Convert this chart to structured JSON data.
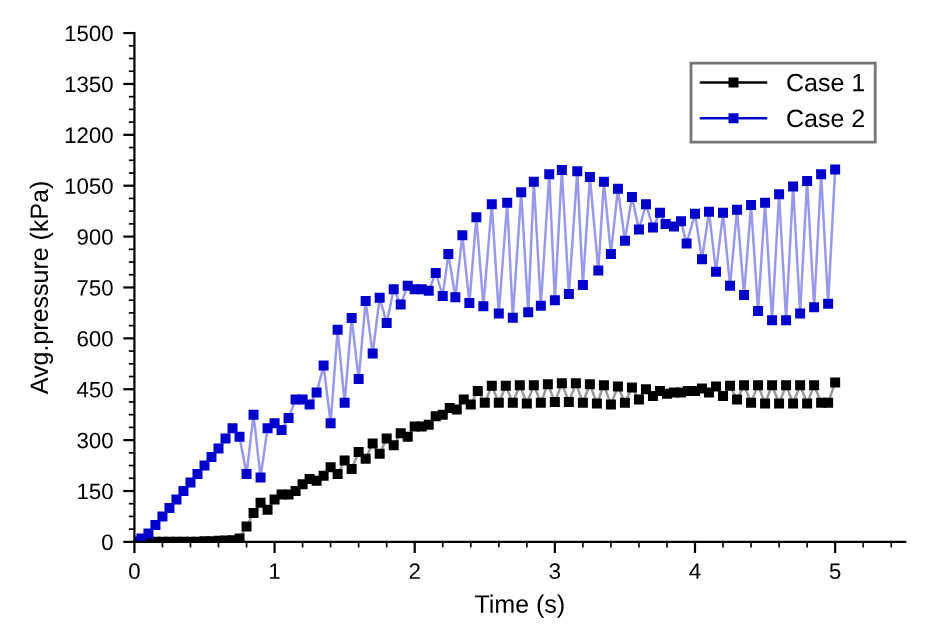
{
  "chart_data": {
    "type": "line",
    "xlabel": "Time (s)",
    "ylabel": "Avg.pressure (kPa)",
    "xlim": [
      0,
      5.5
    ],
    "xticks": [
      0,
      1,
      2,
      3,
      4,
      5
    ],
    "ylim": [
      0,
      1500
    ],
    "yticks": [
      0,
      150,
      300,
      450,
      600,
      750,
      900,
      1050,
      1200,
      1350,
      1500
    ],
    "grid": false,
    "legend": "top right",
    "marker": "square",
    "line_style": "solid",
    "series": [
      {
        "name": "Case 1",
        "color": "#000000",
        "x": [
          0,
          0.05,
          0.1,
          0.15,
          0.2,
          0.25,
          0.3,
          0.35,
          0.4,
          0.45,
          0.5,
          0.55,
          0.6,
          0.65,
          0.7,
          0.75,
          0.8,
          0.85,
          0.9,
          0.95,
          1.0,
          1.05,
          1.1,
          1.15,
          1.2,
          1.25,
          1.3,
          1.35,
          1.4,
          1.45,
          1.5,
          1.55,
          1.6,
          1.65,
          1.7,
          1.75,
          1.8,
          1.85,
          1.9,
          1.95,
          2.0,
          2.05,
          2.1,
          2.15,
          2.2,
          2.25,
          2.3,
          2.35,
          2.4,
          2.45,
          2.5,
          2.55,
          2.6,
          2.65,
          2.7,
          2.75,
          2.8,
          2.85,
          2.9,
          2.95,
          3.0,
          3.05,
          3.1,
          3.15,
          3.2,
          3.25,
          3.3,
          3.35,
          3.4,
          3.45,
          3.5,
          3.55,
          3.6,
          3.65,
          3.7,
          3.75,
          3.8,
          3.85,
          3.9,
          3.95,
          4.0,
          4.05,
          4.1,
          4.15,
          4.2,
          4.25,
          4.3,
          4.35,
          4.4,
          4.45,
          4.5,
          4.55,
          4.6,
          4.65,
          4.7,
          4.75,
          4.8,
          4.85,
          4.9,
          4.95,
          5.0
        ],
        "values": [
          0,
          0,
          0,
          0,
          0,
          0,
          0,
          0,
          0,
          0,
          2,
          2,
          3,
          4,
          5,
          10,
          45,
          85,
          115,
          95,
          125,
          140,
          140,
          150,
          170,
          185,
          180,
          195,
          220,
          200,
          240,
          215,
          265,
          245,
          290,
          260,
          305,
          285,
          320,
          310,
          340,
          340,
          345,
          370,
          375,
          395,
          390,
          420,
          405,
          445,
          410,
          460,
          410,
          460,
          410,
          462,
          408,
          462,
          410,
          465,
          412,
          468,
          412,
          468,
          410,
          465,
          408,
          462,
          405,
          458,
          410,
          455,
          420,
          450,
          430,
          445,
          437,
          440,
          440,
          445,
          445,
          452,
          440,
          458,
          430,
          460,
          420,
          462,
          410,
          462,
          408,
          462,
          408,
          462,
          408,
          462,
          408,
          462,
          410,
          410,
          470
        ]
      },
      {
        "name": "Case 2",
        "color": "#0000cc",
        "x": [
          0,
          0.05,
          0.1,
          0.15,
          0.2,
          0.25,
          0.3,
          0.35,
          0.4,
          0.45,
          0.5,
          0.55,
          0.6,
          0.65,
          0.7,
          0.75,
          0.8,
          0.85,
          0.9,
          0.95,
          1.0,
          1.05,
          1.1,
          1.15,
          1.2,
          1.25,
          1.3,
          1.35,
          1.4,
          1.45,
          1.5,
          1.55,
          1.6,
          1.65,
          1.7,
          1.75,
          1.8,
          1.85,
          1.9,
          1.95,
          2.0,
          2.05,
          2.1,
          2.15,
          2.2,
          2.24,
          2.29,
          2.34,
          2.39,
          2.44,
          2.49,
          2.55,
          2.6,
          2.66,
          2.7,
          2.76,
          2.81,
          2.85,
          2.9,
          2.96,
          3.0,
          3.05,
          3.1,
          3.16,
          3.2,
          3.25,
          3.31,
          3.35,
          3.4,
          3.45,
          3.5,
          3.55,
          3.6,
          3.65,
          3.7,
          3.75,
          3.79,
          3.85,
          3.9,
          3.94,
          4.0,
          4.05,
          4.1,
          4.15,
          4.2,
          4.25,
          4.3,
          4.35,
          4.4,
          4.45,
          4.5,
          4.55,
          4.6,
          4.65,
          4.7,
          4.75,
          4.8,
          4.85,
          4.9,
          4.95,
          5.0
        ],
        "values": [
          0,
          10,
          25,
          50,
          75,
          100,
          125,
          150,
          175,
          200,
          225,
          250,
          275,
          305,
          335,
          310,
          200,
          375,
          190,
          335,
          350,
          330,
          365,
          420,
          420,
          405,
          440,
          520,
          350,
          625,
          410,
          660,
          480,
          710,
          555,
          720,
          645,
          745,
          700,
          755,
          745,
          745,
          740,
          793,
          725,
          849,
          721,
          904,
          704,
          957,
          695,
          995,
          673,
          1000,
          661,
          1031,
          677,
          1062,
          696,
          1084,
          712,
          1096,
          731,
          1093,
          757,
          1076,
          800,
          1062,
          849,
          1041,
          888,
          1017,
          921,
          995,
          927,
          970,
          937,
          930,
          945,
          880,
          967,
          833,
          973,
          796,
          970,
          755,
          979,
          728,
          993,
          681,
          1000,
          653,
          1025,
          653,
          1048,
          673,
          1064,
          692,
          1084,
          702,
          1098
        ]
      }
    ]
  }
}
